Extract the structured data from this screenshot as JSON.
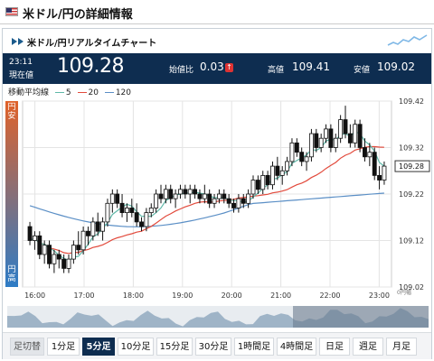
{
  "page_title": "米ドル/円の詳細情報",
  "panel_title": "米ドル/円リアルタイムチャート",
  "quote": {
    "time": "23:11",
    "current_label": "現在値",
    "current_value": "109.28",
    "change_label": "始値比",
    "change_value": "0.03",
    "high_label": "高値",
    "high_value": "109.41",
    "low_label": "安値",
    "low_value": "109.02"
  },
  "legend": {
    "title": "移動平均線",
    "ma_short": "5",
    "ma_mid": "20",
    "ma_long": "120"
  },
  "side": {
    "top": "円安",
    "bottom": "円高"
  },
  "colors": {
    "header_bg": "#0e2d50",
    "ma_short": "#5fb8a8",
    "ma_mid": "#e24a3c",
    "ma_long": "#5b8fc6",
    "up_change": "#d33333"
  },
  "chart_data": {
    "type": "candlestick",
    "y_ticks": [
      "109.42",
      "109.32",
      "109.22",
      "109.12",
      "109.02"
    ],
    "ylim": [
      109.02,
      109.42
    ],
    "x_ticks": [
      "16:00",
      "17:00",
      "18:00",
      "19:00",
      "20:00",
      "21:00",
      "22:00",
      "23:00"
    ],
    "x_range": [
      "15:45",
      "23:15"
    ],
    "last_price": "109.28",
    "interval": "5分足",
    "y_axis_note": "0円幅",
    "candles": [
      [
        109.15,
        109.16,
        109.11,
        109.12
      ],
      [
        109.12,
        109.14,
        109.1,
        109.13
      ],
      [
        109.13,
        109.14,
        109.08,
        109.09
      ],
      [
        109.09,
        109.12,
        109.07,
        109.11
      ],
      [
        109.11,
        109.12,
        109.06,
        109.07
      ],
      [
        109.07,
        109.1,
        109.05,
        109.09
      ],
      [
        109.09,
        109.1,
        109.06,
        109.08
      ],
      [
        109.08,
        109.09,
        109.05,
        109.06
      ],
      [
        109.06,
        109.09,
        109.05,
        109.08
      ],
      [
        109.08,
        109.12,
        109.07,
        109.11
      ],
      [
        109.11,
        109.14,
        109.09,
        109.1
      ],
      [
        109.1,
        109.15,
        109.09,
        109.14
      ],
      [
        109.14,
        109.15,
        109.11,
        109.13
      ],
      [
        109.13,
        109.17,
        109.12,
        109.16
      ],
      [
        109.16,
        109.18,
        109.13,
        109.14
      ],
      [
        109.14,
        109.17,
        109.12,
        109.16
      ],
      [
        109.16,
        109.21,
        109.15,
        109.2
      ],
      [
        109.2,
        109.23,
        109.18,
        109.22
      ],
      [
        109.22,
        109.23,
        109.19,
        109.2
      ],
      [
        109.2,
        109.22,
        109.17,
        109.18
      ],
      [
        109.18,
        109.2,
        109.16,
        109.19
      ],
      [
        109.19,
        109.21,
        109.17,
        109.18
      ],
      [
        109.18,
        109.2,
        109.15,
        109.16
      ],
      [
        109.16,
        109.17,
        109.14,
        109.15
      ],
      [
        109.15,
        109.19,
        109.14,
        109.18
      ],
      [
        109.18,
        109.2,
        109.17,
        109.19
      ],
      [
        109.19,
        109.23,
        109.18,
        109.22
      ],
      [
        109.22,
        109.24,
        109.2,
        109.21
      ],
      [
        109.21,
        109.24,
        109.2,
        109.23
      ],
      [
        109.23,
        109.24,
        109.2,
        109.21
      ],
      [
        109.21,
        109.23,
        109.19,
        109.22
      ],
      [
        109.22,
        109.24,
        109.21,
        109.23
      ],
      [
        109.23,
        109.24,
        109.21,
        109.22
      ],
      [
        109.22,
        109.24,
        109.2,
        109.23
      ],
      [
        109.23,
        109.24,
        109.21,
        109.22
      ],
      [
        109.22,
        109.23,
        109.2,
        109.21
      ],
      [
        109.21,
        109.24,
        109.2,
        109.22
      ],
      [
        109.22,
        109.23,
        109.19,
        109.2
      ],
      [
        109.2,
        109.22,
        109.19,
        109.21
      ],
      [
        109.21,
        109.23,
        109.2,
        109.22
      ],
      [
        109.22,
        109.23,
        109.2,
        109.21
      ],
      [
        109.21,
        109.22,
        109.19,
        109.2
      ],
      [
        109.2,
        109.21,
        109.18,
        109.19
      ],
      [
        109.19,
        109.22,
        109.18,
        109.21
      ],
      [
        109.21,
        109.22,
        109.19,
        109.2
      ],
      [
        109.2,
        109.23,
        109.19,
        109.22
      ],
      [
        109.22,
        109.26,
        109.21,
        109.25
      ],
      [
        109.25,
        109.26,
        109.22,
        109.23
      ],
      [
        109.23,
        109.27,
        109.22,
        109.26
      ],
      [
        109.26,
        109.27,
        109.23,
        109.24
      ],
      [
        109.24,
        109.29,
        109.23,
        109.28
      ],
      [
        109.28,
        109.3,
        109.25,
        109.26
      ],
      [
        109.26,
        109.28,
        109.24,
        109.27
      ],
      [
        109.27,
        109.3,
        109.26,
        109.29
      ],
      [
        109.29,
        109.34,
        109.28,
        109.33
      ],
      [
        109.33,
        109.34,
        109.3,
        109.31
      ],
      [
        109.31,
        109.32,
        109.28,
        109.29
      ],
      [
        109.29,
        109.31,
        109.27,
        109.3
      ],
      [
        109.3,
        109.36,
        109.29,
        109.35
      ],
      [
        109.35,
        109.36,
        109.31,
        109.32
      ],
      [
        109.32,
        109.35,
        109.31,
        109.34
      ],
      [
        109.34,
        109.37,
        109.33,
        109.36
      ],
      [
        109.36,
        109.37,
        109.31,
        109.32
      ],
      [
        109.32,
        109.35,
        109.31,
        109.34
      ],
      [
        109.34,
        109.39,
        109.33,
        109.38
      ],
      [
        109.38,
        109.41,
        109.34,
        109.35
      ],
      [
        109.35,
        109.37,
        109.32,
        109.33
      ],
      [
        109.33,
        109.38,
        109.32,
        109.37
      ],
      [
        109.37,
        109.38,
        109.31,
        109.32
      ],
      [
        109.32,
        109.34,
        109.29,
        109.3
      ],
      [
        109.3,
        109.33,
        109.28,
        109.31
      ],
      [
        109.31,
        109.32,
        109.25,
        109.26
      ],
      [
        109.26,
        109.28,
        109.23,
        109.25
      ],
      [
        109.25,
        109.29,
        109.24,
        109.28
      ]
    ]
  },
  "range_buttons": [
    "足切替",
    "1分足",
    "5分足",
    "10分足",
    "15分足",
    "30分足",
    "1時間足",
    "4時間足",
    "日足",
    "週足",
    "月足"
  ]
}
